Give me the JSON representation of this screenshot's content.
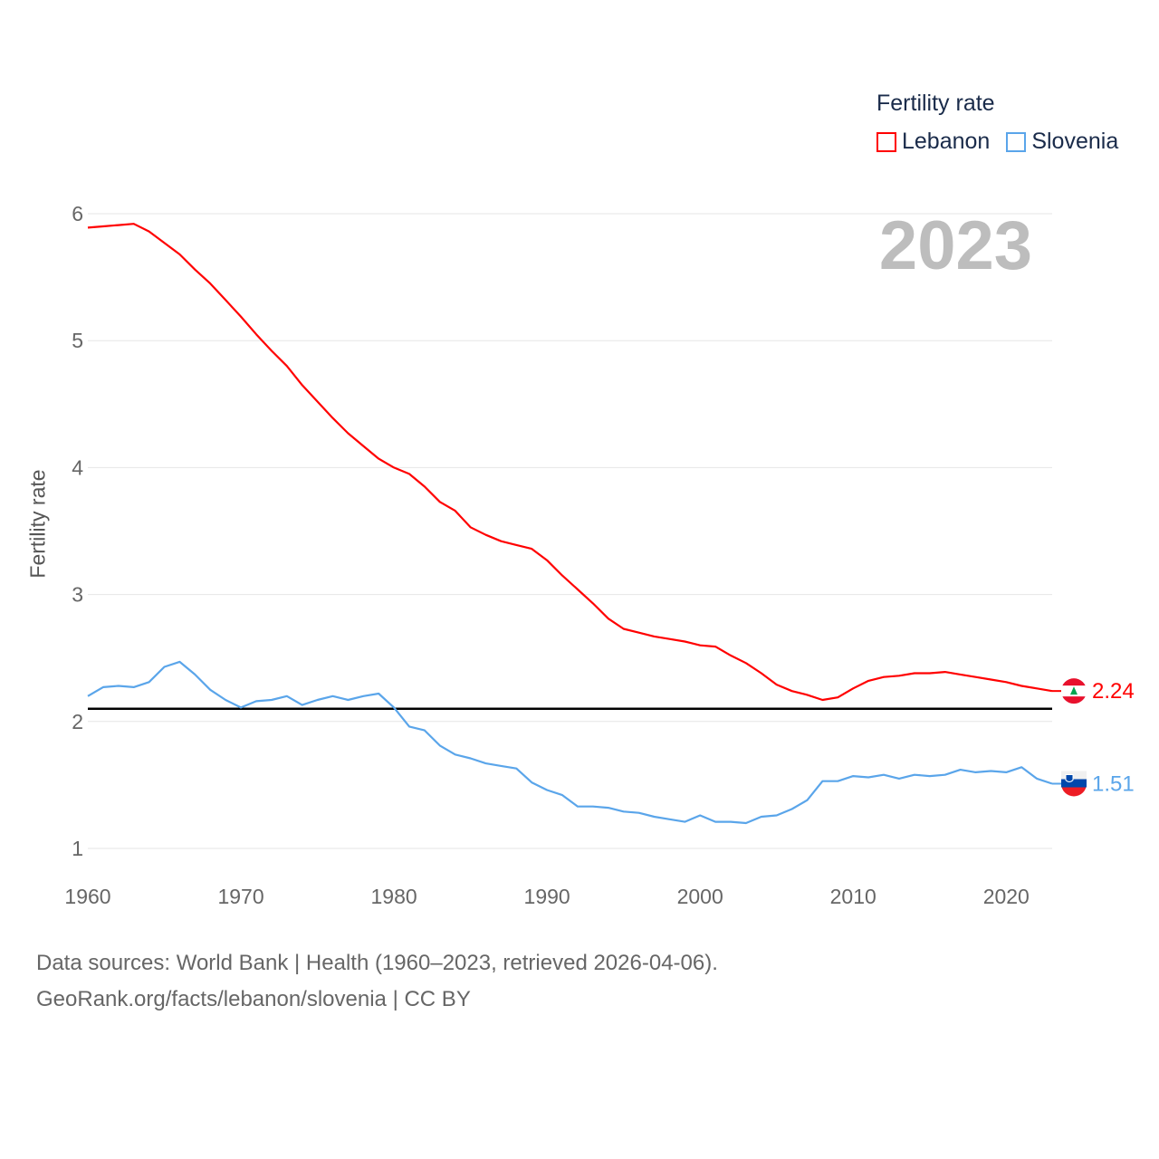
{
  "chart_data": {
    "type": "line",
    "title": "Fertility rate",
    "ylabel": "Fertility rate",
    "xlabel": "",
    "xlim": [
      1960,
      2023
    ],
    "ylim": [
      1,
      6
    ],
    "xticks": [
      "1960",
      "1970",
      "1980",
      "1990",
      "2000",
      "2010",
      "2020"
    ],
    "yticks": [
      "1",
      "2",
      "3",
      "4",
      "5",
      "6"
    ],
    "grid": true,
    "legend_position": "top-right",
    "current_year": "2023",
    "reference_line": 2.1,
    "x": [
      1960,
      1961,
      1962,
      1963,
      1964,
      1965,
      1966,
      1967,
      1968,
      1969,
      1970,
      1971,
      1972,
      1973,
      1974,
      1975,
      1976,
      1977,
      1978,
      1979,
      1980,
      1981,
      1982,
      1983,
      1984,
      1985,
      1986,
      1987,
      1988,
      1989,
      1990,
      1991,
      1992,
      1993,
      1994,
      1995,
      1996,
      1997,
      1998,
      1999,
      2000,
      2001,
      2002,
      2003,
      2004,
      2005,
      2006,
      2007,
      2008,
      2009,
      2010,
      2011,
      2012,
      2013,
      2014,
      2015,
      2016,
      2017,
      2018,
      2019,
      2020,
      2021,
      2022,
      2023
    ],
    "series": [
      {
        "name": "Lebanon",
        "color": "#ff0000",
        "end_label": "2.24",
        "values": [
          5.89,
          5.9,
          5.91,
          5.92,
          5.86,
          5.77,
          5.68,
          5.56,
          5.45,
          5.32,
          5.19,
          5.05,
          4.92,
          4.8,
          4.65,
          4.52,
          4.39,
          4.27,
          4.17,
          4.07,
          4.0,
          3.95,
          3.85,
          3.73,
          3.66,
          3.53,
          3.47,
          3.42,
          3.39,
          3.36,
          3.27,
          3.15,
          3.04,
          2.93,
          2.81,
          2.73,
          2.7,
          2.67,
          2.65,
          2.63,
          2.6,
          2.59,
          2.52,
          2.46,
          2.38,
          2.29,
          2.24,
          2.21,
          2.17,
          2.19,
          2.26,
          2.32,
          2.35,
          2.36,
          2.38,
          2.38,
          2.39,
          2.37,
          2.35,
          2.33,
          2.31,
          2.28,
          2.26,
          2.24
        ]
      },
      {
        "name": "Slovenia",
        "color": "#5aa5ea",
        "end_label": "1.51",
        "values": [
          2.2,
          2.27,
          2.28,
          2.27,
          2.31,
          2.43,
          2.47,
          2.37,
          2.25,
          2.17,
          2.11,
          2.16,
          2.17,
          2.2,
          2.13,
          2.17,
          2.2,
          2.17,
          2.2,
          2.22,
          2.11,
          1.96,
          1.93,
          1.81,
          1.74,
          1.71,
          1.67,
          1.65,
          1.63,
          1.52,
          1.46,
          1.42,
          1.33,
          1.33,
          1.32,
          1.29,
          1.28,
          1.25,
          1.23,
          1.21,
          1.26,
          1.21,
          1.21,
          1.2,
          1.25,
          1.26,
          1.31,
          1.38,
          1.53,
          1.53,
          1.57,
          1.56,
          1.58,
          1.55,
          1.58,
          1.57,
          1.58,
          1.62,
          1.6,
          1.61,
          1.6,
          1.64,
          1.55,
          1.51
        ]
      }
    ]
  },
  "footer": {
    "line1": "Data sources: World Bank | Health (1960–2023, retrieved 2026-04-06).",
    "line2": "GeoRank.org/facts/lebanon/slovenia | CC BY"
  }
}
